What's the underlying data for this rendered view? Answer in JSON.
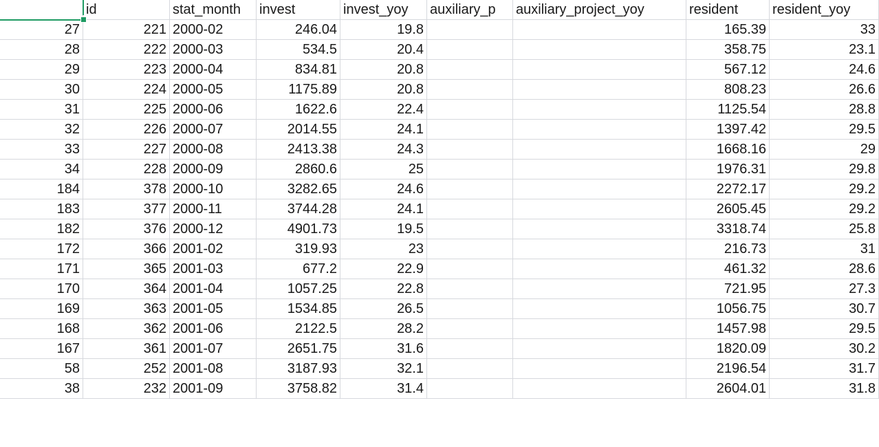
{
  "header": [
    "",
    "id",
    "stat_month",
    "invest",
    "invest_yoy",
    "auxiliary_p",
    "auxiliary_project_yoy",
    "resident",
    "resident_yoy"
  ],
  "rows": [
    [
      "27",
      "221",
      "2000-02",
      "246.04",
      "19.8",
      "",
      "",
      "165.39",
      "33"
    ],
    [
      "28",
      "222",
      "2000-03",
      "534.5",
      "20.4",
      "",
      "",
      "358.75",
      "23.1"
    ],
    [
      "29",
      "223",
      "2000-04",
      "834.81",
      "20.8",
      "",
      "",
      "567.12",
      "24.6"
    ],
    [
      "30",
      "224",
      "2000-05",
      "1175.89",
      "20.8",
      "",
      "",
      "808.23",
      "26.6"
    ],
    [
      "31",
      "225",
      "2000-06",
      "1622.6",
      "22.4",
      "",
      "",
      "1125.54",
      "28.8"
    ],
    [
      "32",
      "226",
      "2000-07",
      "2014.55",
      "24.1",
      "",
      "",
      "1397.42",
      "29.5"
    ],
    [
      "33",
      "227",
      "2000-08",
      "2413.38",
      "24.3",
      "",
      "",
      "1668.16",
      "29"
    ],
    [
      "34",
      "228",
      "2000-09",
      "2860.6",
      "25",
      "",
      "",
      "1976.31",
      "29.8"
    ],
    [
      "184",
      "378",
      "2000-10",
      "3282.65",
      "24.6",
      "",
      "",
      "2272.17",
      "29.2"
    ],
    [
      "183",
      "377",
      "2000-11",
      "3744.28",
      "24.1",
      "",
      "",
      "2605.45",
      "29.2"
    ],
    [
      "182",
      "376",
      "2000-12",
      "4901.73",
      "19.5",
      "",
      "",
      "3318.74",
      "25.8"
    ],
    [
      "172",
      "366",
      "2001-02",
      "319.93",
      "23",
      "",
      "",
      "216.73",
      "31"
    ],
    [
      "171",
      "365",
      "2001-03",
      "677.2",
      "22.9",
      "",
      "",
      "461.32",
      "28.6"
    ],
    [
      "170",
      "364",
      "2001-04",
      "1057.25",
      "22.8",
      "",
      "",
      "721.95",
      "27.3"
    ],
    [
      "169",
      "363",
      "2001-05",
      "1534.85",
      "26.5",
      "",
      "",
      "1056.75",
      "30.7"
    ],
    [
      "168",
      "362",
      "2001-06",
      "2122.5",
      "28.2",
      "",
      "",
      "1457.98",
      "29.5"
    ],
    [
      "167",
      "361",
      "2001-07",
      "2651.75",
      "31.6",
      "",
      "",
      "1820.09",
      "30.2"
    ],
    [
      "58",
      "252",
      "2001-08",
      "3187.93",
      "32.1",
      "",
      "",
      "2196.54",
      "31.7"
    ],
    [
      "38",
      "232",
      "2001-09",
      "3758.82",
      "31.4",
      "",
      "",
      "2604.01",
      "31.8"
    ]
  ],
  "column_align": [
    "num",
    "num",
    "txt",
    "num",
    "num",
    "num",
    "num",
    "num",
    "num"
  ],
  "column_names": [
    "col-a",
    "col-id",
    "col-stat-month",
    "col-invest",
    "col-invest-yoy",
    "col-auxiliary-p",
    "col-auxiliary-project-yoy",
    "col-resident",
    "col-resident-yoy"
  ],
  "colors": {
    "selection": "#1e9b63",
    "gridline": "#d6d8dd",
    "text": "#1a1a1a"
  }
}
